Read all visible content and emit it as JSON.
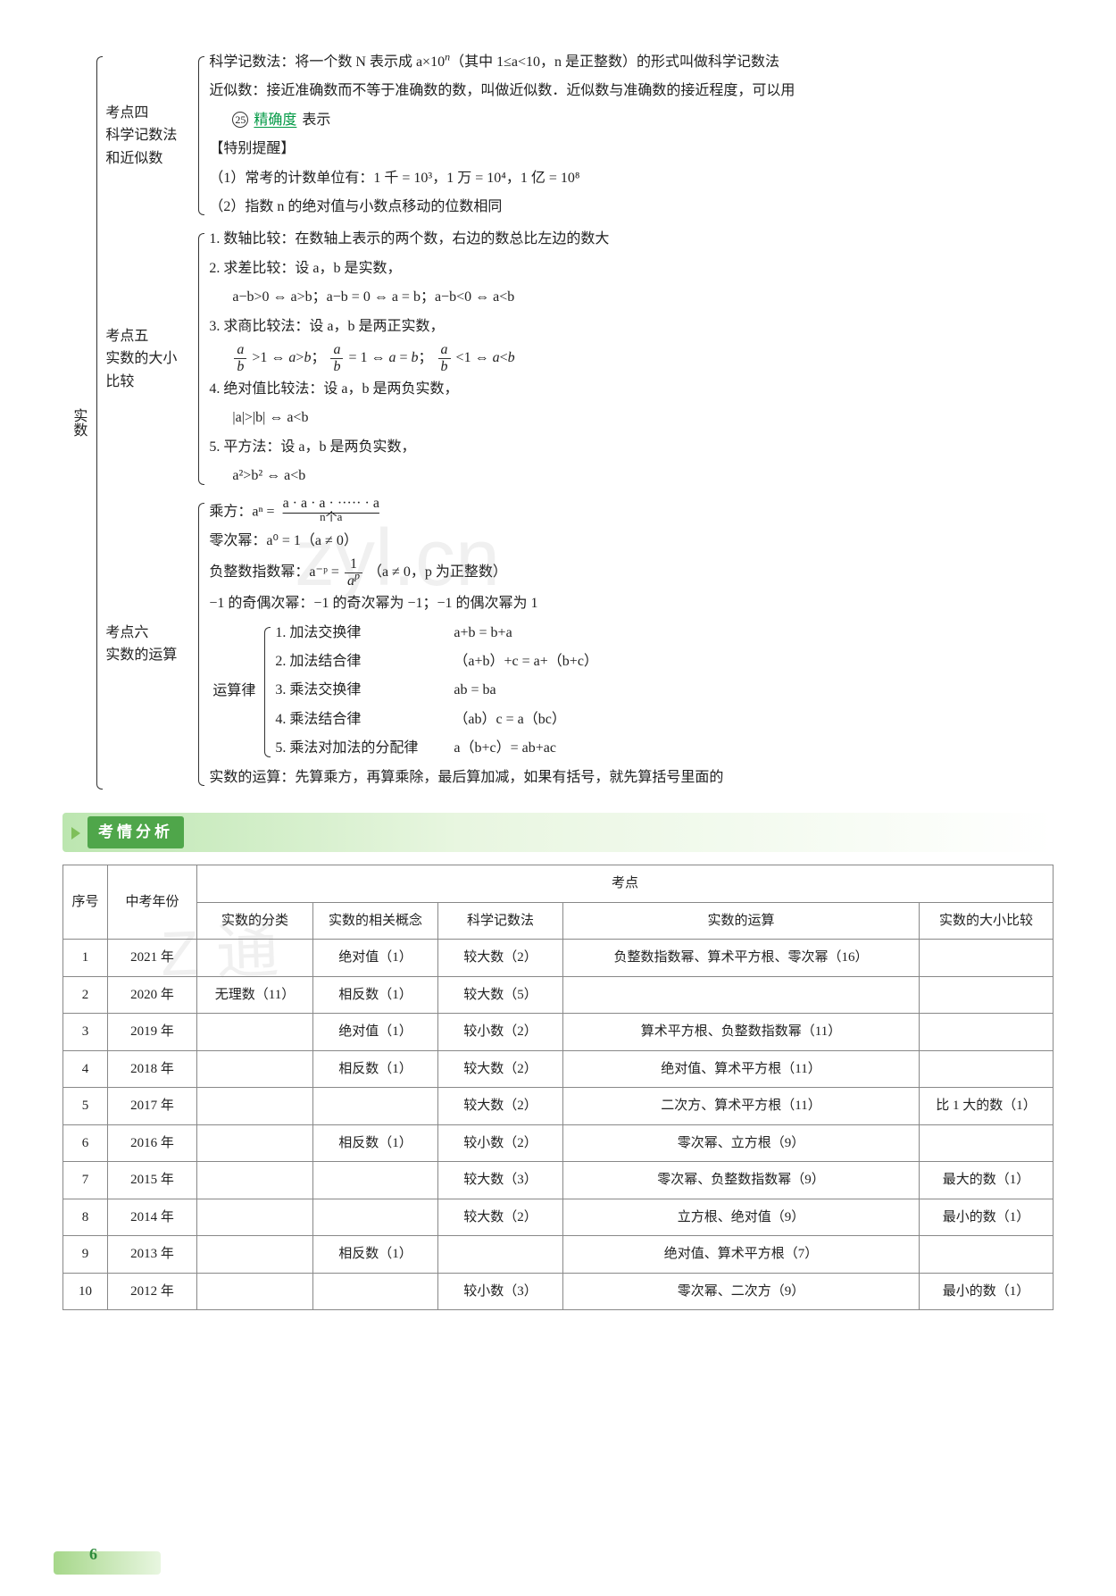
{
  "root_label": "实数",
  "points": {
    "p4": {
      "label_l1": "考点四",
      "label_l2": "科学记数法",
      "label_l3": "和近似数",
      "line1a": "科学记数法：将一个数 N 表示成 a×10",
      "line1b": "（其中 1≤a<10，n 是正整数）的形式叫做科学记数法",
      "line2": "近似数：接近准确数而不等于准确数的数，叫做近似数．近似数与准确数的接近程度，可以用",
      "circ": "㉕",
      "blank": "精确度",
      "line2b": " 表示",
      "remind": "【特别提醒】",
      "r1": "（1）常考的计数单位有：1 千 = 10³，1 万 = 10⁴，1 亿 = 10⁸",
      "r2": "（2）指数 n 的绝对值与小数点移动的位数相同"
    },
    "p5": {
      "label_l1": "考点五",
      "label_l2": "实数的大小",
      "label_l3": "比较",
      "l1": "1. 数轴比较：在数轴上表示的两个数，右边的数总比左边的数大",
      "l2": "2. 求差比较：设 a，b 是实数，",
      "l2b": "a−b>0 ⇔ a>b；a−b = 0 ⇔ a = b；a−b<0 ⇔ a<b",
      "l3": "3. 求商比较法：设 a，b 是两正实数，",
      "l4": "4. 绝对值比较法：设 a，b 是两负实数，",
      "l4b": "|a|>|b| ⇔ a<b",
      "l5": "5. 平方法：设 a，b 是两负实数，",
      "l5b": "a²>b² ⇔ a<b"
    },
    "p6": {
      "label_l1": "考点六",
      "label_l2": "实数的运算",
      "pow1": "乘方：aⁿ = ",
      "pow1u": "a · a · a · ····· · a",
      "pow1d": "n个a",
      "pow2": "零次幂：a⁰ = 1（a ≠ 0）",
      "pow3a": "负整数指数幂：a⁻ᵖ = ",
      "pow3b": "（a ≠ 0，p 为正整数）",
      "odd_even": "−1 的奇偶次幂：−1 的奇次幂为 −1；−1 的偶次幂为 1",
      "laws_label": "运算律",
      "law1n": "1. 加法交换律",
      "law1e": "a+b = b+a",
      "law2n": "2. 加法结合律",
      "law2e": "（a+b）+c = a+（b+c）",
      "law3n": "3. 乘法交换律",
      "law3e": "ab = ba",
      "law4n": "4. 乘法结合律",
      "law4e": "（ab）c = a（bc）",
      "law5n": "5. 乘法对加法的分配律",
      "law5e": "a（b+c）= ab+ac",
      "final": "实数的运算：先算乘方，再算乘除，最后算加减，如果有括号，就先算括号里面的"
    }
  },
  "section_title": "考情分析",
  "table": {
    "head_top": "考点",
    "cols": [
      "序号",
      "中考年份",
      "实数的分类",
      "实数的相关概念",
      "科学记数法",
      "实数的运算",
      "实数的大小比较"
    ],
    "rows": [
      [
        "1",
        "2021 年",
        "",
        "绝对值（1）",
        "较大数（2）",
        "负整数指数幂、算术平方根、零次幂（16）",
        ""
      ],
      [
        "2",
        "2020 年",
        "无理数（11）",
        "相反数（1）",
        "较大数（5）",
        "",
        ""
      ],
      [
        "3",
        "2019 年",
        "",
        "绝对值（1）",
        "较小数（2）",
        "算术平方根、负整数指数幂（11）",
        ""
      ],
      [
        "4",
        "2018 年",
        "",
        "相反数（1）",
        "较大数（2）",
        "绝对值、算术平方根（11）",
        ""
      ],
      [
        "5",
        "2017 年",
        "",
        "",
        "较大数（2）",
        "二次方、算术平方根（11）",
        "比 1 大的数（1）"
      ],
      [
        "6",
        "2016 年",
        "",
        "相反数（1）",
        "较小数（2）",
        "零次幂、立方根（9）",
        ""
      ],
      [
        "7",
        "2015 年",
        "",
        "",
        "较大数（3）",
        "零次幂、负整数指数幂（9）",
        "最大的数（1）"
      ],
      [
        "8",
        "2014 年",
        "",
        "",
        "较大数（2）",
        "立方根、绝对值（9）",
        "最小的数（1）"
      ],
      [
        "9",
        "2013 年",
        "",
        "相反数（1）",
        "",
        "绝对值、算术平方根（7）",
        ""
      ],
      [
        "10",
        "2012 年",
        "",
        "",
        "较小数（3）",
        "零次幂、二次方（9）",
        "最小的数（1）"
      ]
    ]
  },
  "page_number": "6",
  "colors": {
    "blank": "#009944",
    "bar_dark": "#4fa64a",
    "bar_light": "#bce6b0"
  }
}
